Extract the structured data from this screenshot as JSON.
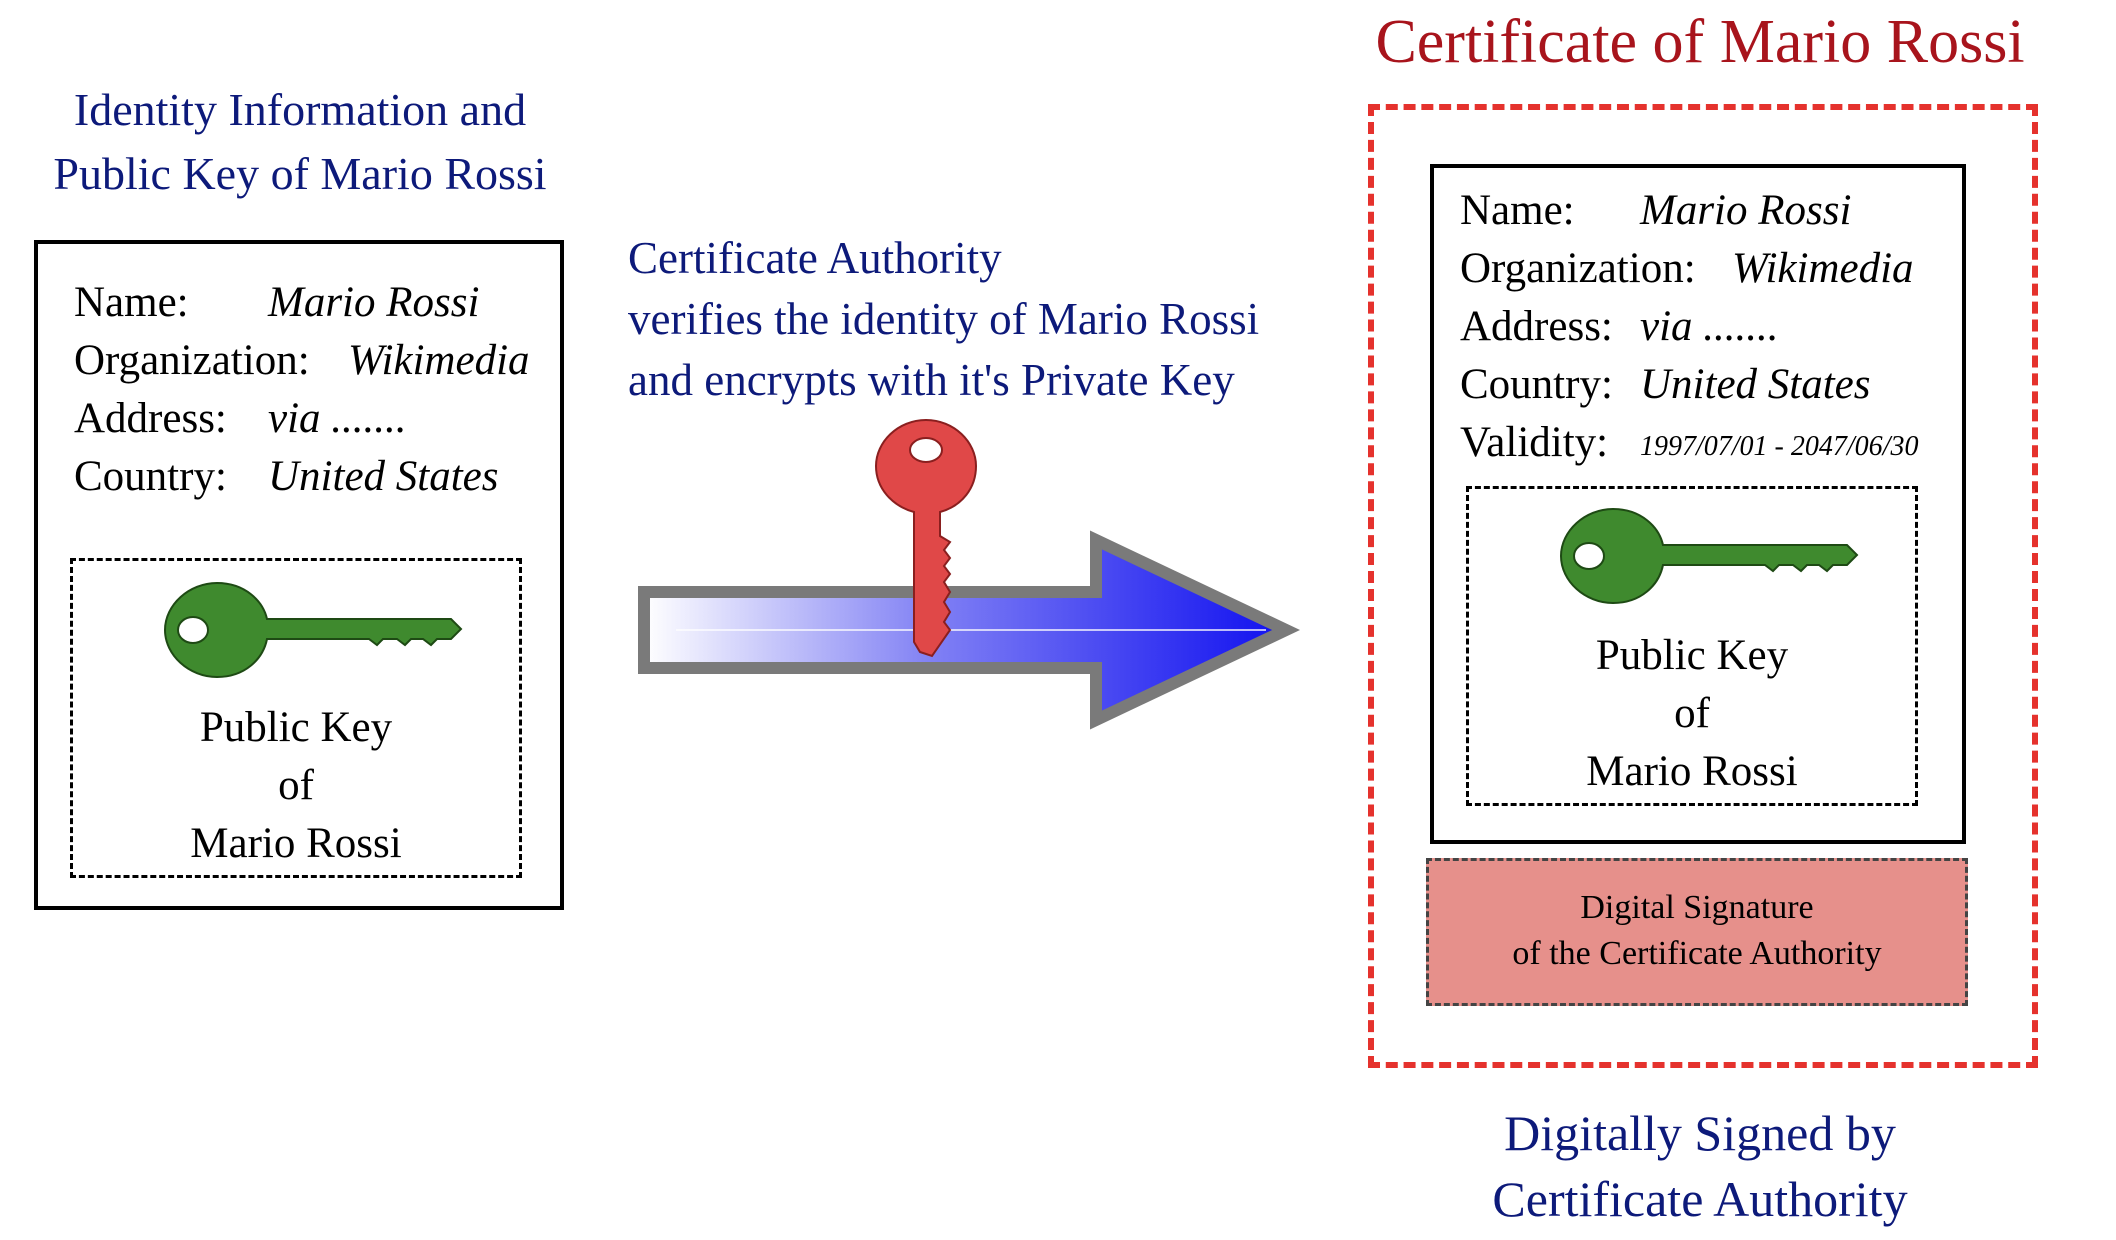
{
  "left": {
    "heading_line1": "Identity Information and",
    "heading_line2": "Public Key of Mario Rossi",
    "fields": [
      {
        "label": "Name:",
        "value": "Mario Rossi"
      },
      {
        "label": "Organization:",
        "value": "Wikimedia"
      },
      {
        "label": "Address:",
        "value": "via ......."
      },
      {
        "label": "Country:",
        "value": "United States"
      }
    ],
    "public_key": {
      "line1": "Public Key",
      "line2": "of",
      "line3": "Mario Rossi"
    }
  },
  "middle": {
    "line1": "Certificate Authority",
    "line2": "verifies the identity of Mario Rossi",
    "line3": "and encrypts with it's Private Key"
  },
  "certificate": {
    "title": "Certificate of Mario Rossi",
    "fields": [
      {
        "label": "Name:",
        "value": "Mario Rossi"
      },
      {
        "label": "Organization:",
        "value": "Wikimedia"
      },
      {
        "label": "Address:",
        "value": "via ......."
      },
      {
        "label": "Country:",
        "value": "United States"
      },
      {
        "label": "Validity:",
        "value": "1997/07/01 - 2047/06/30"
      }
    ],
    "public_key": {
      "line1": "Public Key",
      "line2": "of",
      "line3": "Mario Rossi"
    },
    "signature": {
      "line1": "Digital Signature",
      "line2": "of the Certificate Authority"
    },
    "caption_line1": "Digitally Signed by",
    "caption_line2": "Certificate Authority"
  },
  "colors": {
    "navy_text": "#0d1a7a",
    "cert_title": "#a8141c",
    "cert_frame": "#e5322d",
    "public_key_icon": "#3f8a2e",
    "private_key_icon": "#e04848",
    "arrow_blue": "#1010f0",
    "signature_fill": "#e6908b"
  },
  "icons": {
    "public_key": "green-key-icon",
    "private_key": "red-key-icon",
    "arrow": "right-arrow-icon"
  }
}
